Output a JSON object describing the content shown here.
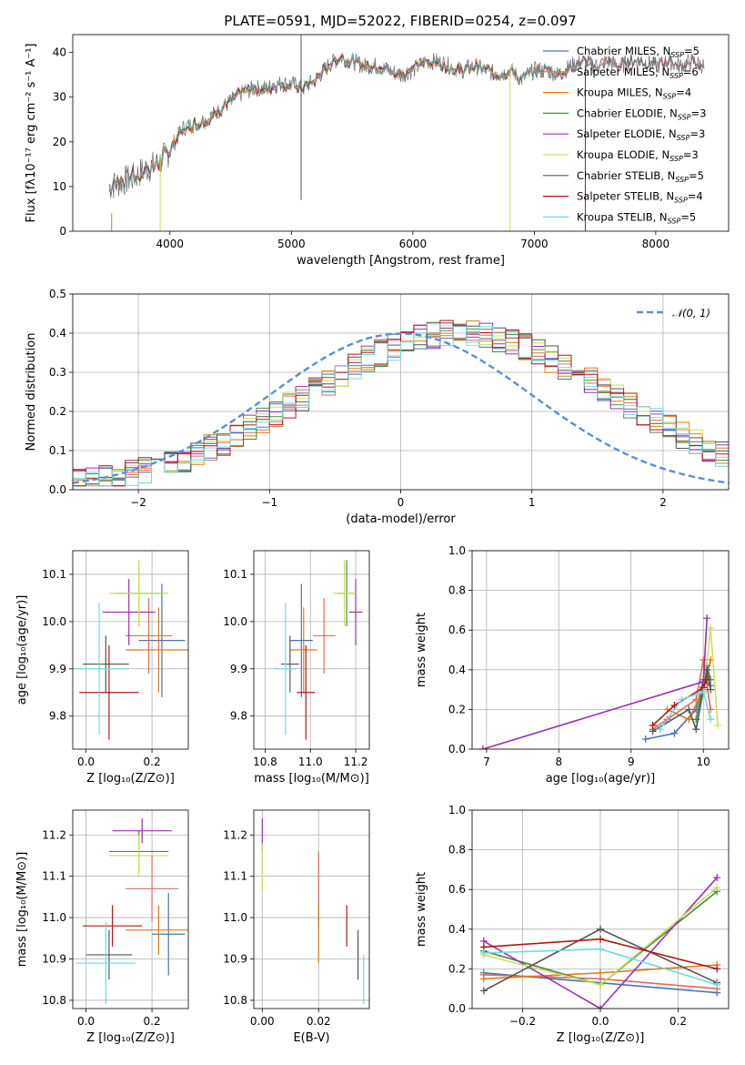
{
  "figure_title": "PLATE=0591, MJD=52022, FIBERID=0254, z=0.097",
  "colors": {
    "Chabrier MILES": "#4c72b0",
    "Salpeter MILES": "#e06b5a",
    "Kroupa MILES": "#e07b1a",
    "Chabrier ELODIE": "#4a8a4a",
    "Salpeter ELODIE": "#9b30b0",
    "Kroupa ELODIE": "#c8e060",
    "Chabrier STELIB": "#555555",
    "Salpeter STELIB": "#b01818",
    "Kroupa STELIB": "#70d8e0"
  },
  "chart_data": [
    {
      "id": "spectrum",
      "type": "line",
      "xlabel": "wavelength [Angstrom, rest frame]",
      "ylabel": "Flux [fλ10⁻¹⁷ erg cm⁻² s⁻¹ A⁻¹]",
      "xlim": [
        3200,
        8600
      ],
      "ylim": [
        0,
        44
      ],
      "xticks": [
        4000,
        5000,
        6000,
        7000,
        8000
      ],
      "yticks": [
        0,
        10,
        20,
        30,
        40
      ],
      "legend_position": "top-right",
      "data_spectrum": {
        "x": [
          3500,
          3600,
          3700,
          3800,
          3900,
          4000,
          4100,
          4200,
          4300,
          4400,
          4500,
          4600,
          4700,
          4800,
          4900,
          5000,
          5100,
          5200,
          5300,
          5400,
          5500,
          5600,
          5700,
          5800,
          5900,
          6000,
          6100,
          6200,
          6300,
          6400,
          6500,
          6600,
          6700,
          6800,
          6900,
          7000,
          7100,
          7200,
          7300,
          7400,
          7500,
          7600,
          7700,
          7800,
          7900,
          8000,
          8100,
          8200,
          8300,
          8400
        ],
        "y": [
          10,
          11,
          12,
          14,
          15,
          18,
          23,
          24,
          25,
          27,
          29,
          31,
          32,
          32,
          33,
          33,
          32,
          34,
          37,
          39,
          38,
          37,
          37,
          36,
          35,
          36,
          38,
          38,
          37,
          36,
          37,
          36,
          35,
          36,
          34,
          36,
          36,
          35,
          37,
          38,
          37,
          38,
          37,
          38,
          38,
          37,
          38,
          37,
          38,
          37
        ]
      },
      "legend": [
        {
          "label": "Chabrier MILES, N",
          "sub": "SSP",
          "value": "=5"
        },
        {
          "label": "Salpeter MILES, N",
          "sub": "SSP",
          "value": "=6"
        },
        {
          "label": "Kroupa MILES, N",
          "sub": "SSP",
          "value": "=4"
        },
        {
          "label": "Chabrier ELODIE, N",
          "sub": "SSP",
          "value": "=3"
        },
        {
          "label": "Salpeter ELODIE, N",
          "sub": "SSP",
          "value": "=3"
        },
        {
          "label": "Kroupa ELODIE, N",
          "sub": "SSP",
          "value": "=3"
        },
        {
          "label": "Chabrier STELIB, N",
          "sub": "SSP",
          "value": "=5"
        },
        {
          "label": "Salpeter STELIB, N",
          "sub": "SSP",
          "value": "=4"
        },
        {
          "label": "Kroupa STELIB, N",
          "sub": "SSP",
          "value": "=5"
        }
      ],
      "model_lines_x_end": [
        8400,
        8400,
        7400,
        7400,
        7400,
        7400,
        8400,
        7400,
        7400
      ],
      "vertical_spikes": [
        {
          "x": 5080,
          "ymin": 7,
          "ymax": 44,
          "color": "#555555"
        },
        {
          "x": 3920,
          "ymin": 0,
          "ymax": 17,
          "color": "#c8e060"
        },
        {
          "x": 6800,
          "ymin": 0,
          "ymax": 36,
          "color": "#c8e060"
        },
        {
          "x": 7420,
          "ymin": 0,
          "ymax": 37,
          "color": "#b01818"
        },
        {
          "x": 3520,
          "ymin": 0,
          "ymax": 4,
          "color": "#e07b1a"
        }
      ]
    },
    {
      "id": "residual-histogram",
      "type": "area",
      "xlabel": "(data-model)/error",
      "ylabel": "Normed distribution",
      "xlim": [
        -2.5,
        2.5
      ],
      "ylim": [
        0,
        0.5
      ],
      "xticks": [
        -2,
        -1,
        0,
        1,
        2
      ],
      "yticks": [
        0.0,
        0.1,
        0.2,
        0.3,
        0.4,
        0.5
      ],
      "legend_label": "𝒩(0, 1)",
      "legend_position": "top-right",
      "bin_width": 0.1,
      "bin_start": -2.5,
      "base_distribution": [
        0.018,
        0.022,
        0.027,
        0.033,
        0.04,
        0.048,
        0.057,
        0.067,
        0.079,
        0.092,
        0.106,
        0.121,
        0.138,
        0.156,
        0.175,
        0.194,
        0.214,
        0.235,
        0.256,
        0.276,
        0.296,
        0.315,
        0.333,
        0.35,
        0.364,
        0.377,
        0.387,
        0.394,
        0.398,
        0.399,
        0.398,
        0.394,
        0.387,
        0.377,
        0.364,
        0.35,
        0.333,
        0.315,
        0.296,
        0.276,
        0.256,
        0.235,
        0.214,
        0.194,
        0.175,
        0.156,
        0.138,
        0.121,
        0.106,
        0.092
      ]
    },
    {
      "id": "age-vs-metallicity",
      "type": "scatter",
      "xlabel": "Z [log₁₀(Z/Z⊙)]",
      "ylabel": "age  [log₁₀(age/yr)]",
      "xlim": [
        -0.04,
        0.31
      ],
      "ylim": [
        9.73,
        10.15
      ],
      "xticks": [
        0.0,
        0.2
      ],
      "yticks": [
        9.8,
        9.9,
        10.0,
        10.1
      ],
      "points": [
        {
          "model": "Chabrier MILES",
          "x": 0.23,
          "y": 9.96,
          "xerr": 0.07,
          "yerr": 0.12
        },
        {
          "model": "Salpeter MILES",
          "x": 0.19,
          "y": 9.97,
          "xerr": 0.07,
          "yerr": 0.08
        },
        {
          "model": "Kroupa MILES",
          "x": 0.22,
          "y": 9.94,
          "xerr": 0.1,
          "yerr": 0.09
        },
        {
          "model": "Chabrier ELODIE",
          "x": 0.16,
          "y": 10.06,
          "xerr": 0.07,
          "yerr": 0.07
        },
        {
          "model": "Salpeter ELODIE",
          "x": 0.13,
          "y": 10.02,
          "xerr": 0.08,
          "yerr": 0.07
        },
        {
          "model": "Kroupa ELODIE",
          "x": 0.16,
          "y": 10.06,
          "xerr": 0.09,
          "yerr": 0.07
        },
        {
          "model": "Chabrier STELIB",
          "x": 0.06,
          "y": 9.91,
          "xerr": 0.07,
          "yerr": 0.06
        },
        {
          "model": "Salpeter STELIB",
          "x": 0.07,
          "y": 9.85,
          "xerr": 0.09,
          "yerr": 0.1
        },
        {
          "model": "Kroupa STELIB",
          "x": 0.04,
          "y": 9.9,
          "xerr": 0.09,
          "yerr": 0.14
        }
      ]
    },
    {
      "id": "age-vs-mass",
      "type": "scatter",
      "xlabel": "mass [log₁₀(M/M⊙)]",
      "ylabel": "",
      "xlim": [
        10.75,
        11.26
      ],
      "ylim": [
        9.73,
        10.15
      ],
      "xticks": [
        10.8,
        11.0,
        11.2
      ],
      "yticks": [
        9.8,
        9.9,
        10.0,
        10.1
      ],
      "points": [
        {
          "model": "Chabrier MILES",
          "x": 10.96,
          "y": 9.96,
          "xerr": 0.05,
          "yerr": 0.12
        },
        {
          "model": "Salpeter MILES",
          "x": 11.06,
          "y": 9.97,
          "xerr": 0.05,
          "yerr": 0.08
        },
        {
          "model": "Kroupa MILES",
          "x": 10.97,
          "y": 9.94,
          "xerr": 0.06,
          "yerr": 0.09
        },
        {
          "model": "Chabrier ELODIE",
          "x": 11.16,
          "y": 10.06,
          "xerr": 0.04,
          "yerr": 0.07
        },
        {
          "model": "Salpeter ELODIE",
          "x": 11.2,
          "y": 10.02,
          "xerr": 0.03,
          "yerr": 0.07
        },
        {
          "model": "Kroupa ELODIE",
          "x": 11.15,
          "y": 10.06,
          "xerr": 0.05,
          "yerr": 0.07
        },
        {
          "model": "Chabrier STELIB",
          "x": 10.91,
          "y": 9.91,
          "xerr": 0.04,
          "yerr": 0.06
        },
        {
          "model": "Salpeter STELIB",
          "x": 10.98,
          "y": 9.85,
          "xerr": 0.04,
          "yerr": 0.1
        },
        {
          "model": "Kroupa STELIB",
          "x": 10.89,
          "y": 9.9,
          "xerr": 0.05,
          "yerr": 0.14
        }
      ]
    },
    {
      "id": "weight-vs-age",
      "type": "line",
      "xlabel": "age  [log₁₀(age/yr)]",
      "ylabel": "mass weight",
      "xlim": [
        6.8,
        10.35
      ],
      "ylim": [
        0,
        1
      ],
      "xticks": [
        7,
        8,
        9,
        10
      ],
      "yticks": [
        0.0,
        0.2,
        0.4,
        0.6,
        0.8,
        1.0
      ],
      "series": [
        {
          "model": "Chabrier MILES",
          "x": [
            9.2,
            9.6,
            9.9,
            10.0,
            10.1
          ],
          "y": [
            0.05,
            0.08,
            0.2,
            0.35,
            0.32
          ]
        },
        {
          "model": "Salpeter MILES",
          "x": [
            9.3,
            9.5,
            9.9,
            10.0,
            10.1
          ],
          "y": [
            0.1,
            0.15,
            0.25,
            0.45,
            0.2
          ]
        },
        {
          "model": "Kroupa MILES",
          "x": [
            9.5,
            9.8,
            10.0,
            10.1
          ],
          "y": [
            0.2,
            0.15,
            0.3,
            0.45
          ]
        },
        {
          "model": "Chabrier ELODIE",
          "x": [
            9.9,
            10.05,
            10.1
          ],
          "y": [
            0.15,
            0.42,
            0.35
          ]
        },
        {
          "model": "Salpeter ELODIE",
          "x": [
            6.95,
            10.0,
            10.05
          ],
          "y": [
            0.0,
            0.34,
            0.66
          ]
        },
        {
          "model": "Kroupa ELODIE",
          "x": [
            10.0,
            10.1,
            10.2
          ],
          "y": [
            0.28,
            0.61,
            0.12
          ]
        },
        {
          "model": "Chabrier STELIB",
          "x": [
            9.3,
            9.8,
            9.9,
            10.05,
            10.1
          ],
          "y": [
            0.09,
            0.2,
            0.1,
            0.4,
            0.3
          ]
        },
        {
          "model": "Salpeter STELIB",
          "x": [
            9.3,
            9.6,
            10.0,
            10.05
          ],
          "y": [
            0.12,
            0.22,
            0.31,
            0.35
          ]
        },
        {
          "model": "Kroupa STELIB",
          "x": [
            9.4,
            9.7,
            10.0,
            10.1
          ],
          "y": [
            0.1,
            0.25,
            0.29,
            0.15
          ]
        }
      ]
    },
    {
      "id": "mass-vs-metallicity",
      "type": "scatter",
      "xlabel": "Z [log₁₀(Z/Z⊙)]",
      "ylabel": "mass [log₁₀(M/M⊙)]",
      "xlim": [
        -0.04,
        0.31
      ],
      "ylim": [
        10.78,
        11.26
      ],
      "xticks": [
        0.0,
        0.2
      ],
      "yticks": [
        10.8,
        10.9,
        11.0,
        11.1,
        11.2
      ],
      "points": [
        {
          "model": "Chabrier MILES",
          "x": 0.25,
          "y": 10.96,
          "xerr": 0.05,
          "yerr": 0.1
        },
        {
          "model": "Salpeter MILES",
          "x": 0.2,
          "y": 11.07,
          "xerr": 0.08,
          "yerr": 0.08
        },
        {
          "model": "Kroupa MILES",
          "x": 0.22,
          "y": 10.97,
          "xerr": 0.1,
          "yerr": 0.06
        },
        {
          "model": "Chabrier ELODIE",
          "x": 0.16,
          "y": 11.16,
          "xerr": 0.09,
          "yerr": 0.05
        },
        {
          "model": "Salpeter ELODIE",
          "x": 0.17,
          "y": 11.21,
          "xerr": 0.09,
          "yerr": 0.03
        },
        {
          "model": "Kroupa ELODIE",
          "x": 0.16,
          "y": 11.15,
          "xerr": 0.09,
          "yerr": 0.05
        },
        {
          "model": "Chabrier STELIB",
          "x": 0.07,
          "y": 10.91,
          "xerr": 0.07,
          "yerr": 0.06
        },
        {
          "model": "Salpeter STELIB",
          "x": 0.08,
          "y": 10.98,
          "xerr": 0.09,
          "yerr": 0.05
        },
        {
          "model": "Kroupa STELIB",
          "x": 0.06,
          "y": 10.89,
          "xerr": 0.09,
          "yerr": 0.1
        }
      ]
    },
    {
      "id": "mass-vs-extinction",
      "type": "scatter",
      "xlabel": "E(B-V)",
      "ylabel": "",
      "xlim": [
        -0.003,
        0.038
      ],
      "ylim": [
        10.78,
        11.26
      ],
      "xticks": [
        0.0,
        0.02
      ],
      "yticks": [
        10.8,
        10.9,
        11.0,
        11.1,
        11.2
      ],
      "points": [
        {
          "model": "Salpeter ELODIE",
          "x": 0.0,
          "y": 11.2,
          "yerr": 0.04
        },
        {
          "model": "Kroupa ELODIE",
          "x": 0.0,
          "y": 11.12,
          "yerr": 0.06
        },
        {
          "model": "Salpeter MILES",
          "x": 0.02,
          "y": 11.07,
          "yerr": 0.09
        },
        {
          "model": "Kroupa MILES",
          "x": 0.02,
          "y": 10.96,
          "yerr": 0.07
        },
        {
          "model": "Salpeter STELIB",
          "x": 0.03,
          "y": 10.98,
          "yerr": 0.05
        },
        {
          "model": "Chabrier STELIB",
          "x": 0.034,
          "y": 10.91,
          "yerr": 0.06
        },
        {
          "model": "Kroupa STELIB",
          "x": 0.036,
          "y": 10.85,
          "yerr": 0.06
        }
      ]
    },
    {
      "id": "weight-vs-metallicity",
      "type": "line",
      "xlabel": "Z [log₁₀(Z/Z⊙)]",
      "ylabel": "mass weight",
      "xlim": [
        -0.33,
        0.33
      ],
      "ylim": [
        0,
        1
      ],
      "xticks": [
        -0.2,
        0.0,
        0.2
      ],
      "yticks": [
        0.0,
        0.2,
        0.4,
        0.6,
        0.8,
        1.0
      ],
      "series": [
        {
          "model": "Chabrier MILES",
          "x": [
            -0.3,
            0.0,
            0.3
          ],
          "y": [
            0.18,
            0.13,
            0.08
          ]
        },
        {
          "model": "Salpeter MILES",
          "x": [
            -0.3,
            0.0,
            0.3
          ],
          "y": [
            0.17,
            0.15,
            0.1
          ]
        },
        {
          "model": "Kroupa MILES",
          "x": [
            -0.3,
            0.0,
            0.3
          ],
          "y": [
            0.15,
            0.18,
            0.22
          ]
        },
        {
          "model": "Chabrier ELODIE",
          "x": [
            -0.3,
            0.0,
            0.3
          ],
          "y": [
            0.29,
            0.12,
            0.59
          ]
        },
        {
          "model": "Salpeter ELODIE",
          "x": [
            -0.3,
            0.0,
            0.3
          ],
          "y": [
            0.34,
            0.0,
            0.66
          ]
        },
        {
          "model": "Kroupa ELODIE",
          "x": [
            -0.3,
            0.0,
            0.3
          ],
          "y": [
            0.27,
            0.12,
            0.61
          ]
        },
        {
          "model": "Chabrier STELIB",
          "x": [
            -0.3,
            0.0,
            0.3
          ],
          "y": [
            0.09,
            0.4,
            0.13
          ]
        },
        {
          "model": "Salpeter STELIB",
          "x": [
            -0.3,
            0.0,
            0.3
          ],
          "y": [
            0.31,
            0.35,
            0.2
          ]
        },
        {
          "model": "Kroupa STELIB",
          "x": [
            -0.3,
            0.0,
            0.3
          ],
          "y": [
            0.28,
            0.3,
            0.12
          ]
        }
      ]
    }
  ]
}
